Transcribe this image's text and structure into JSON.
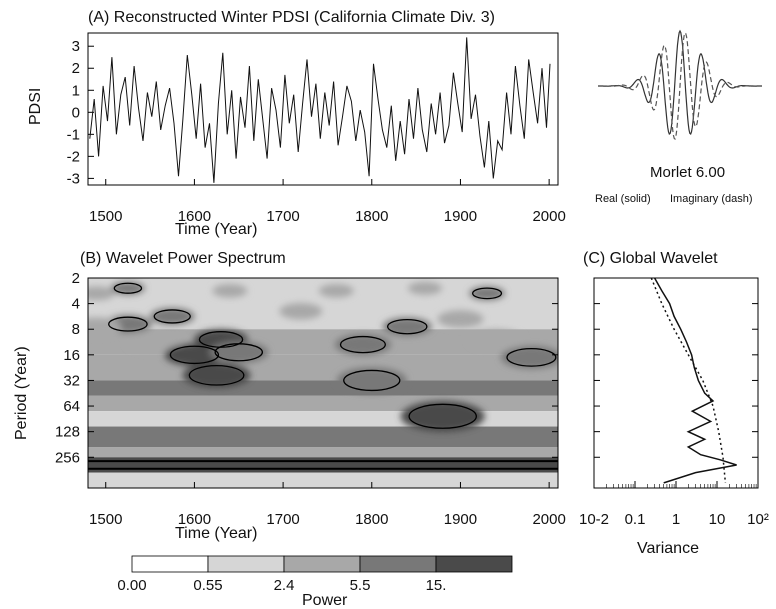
{
  "chart_data": [
    {
      "type": "line",
      "panel": "A",
      "title": "(A) Reconstructed Winter PDSI (California Climate Div. 3)",
      "xlabel": "Time (Year)",
      "ylabel": "PDSI",
      "xlim": [
        1480,
        2010
      ],
      "ylim": [
        -3.3,
        3.6
      ],
      "xticks": [
        "1500",
        "1600",
        "1700",
        "1800",
        "1900",
        "2000"
      ],
      "yticks": [
        "3",
        "2",
        "1",
        "0",
        "-1",
        "-2",
        "-3"
      ],
      "ytick_values": [
        3,
        2,
        1,
        0,
        -1,
        -2,
        -3
      ],
      "series": [
        {
          "x": [
            1482,
            1487,
            1492,
            1497,
            1502,
            1507,
            1512,
            1517,
            1522,
            1527,
            1532,
            1537,
            1542,
            1547,
            1552,
            1557,
            1562,
            1567,
            1572,
            1577,
            1582,
            1587,
            1592,
            1597,
            1602,
            1607,
            1612,
            1617,
            1622,
            1627,
            1632,
            1637,
            1642,
            1647,
            1652,
            1657,
            1662,
            1667,
            1672,
            1677,
            1682,
            1687,
            1692,
            1697,
            1702,
            1707,
            1712,
            1717,
            1722,
            1727,
            1732,
            1737,
            1742,
            1747,
            1752,
            1757,
            1762,
            1767,
            1772,
            1777,
            1782,
            1787,
            1792,
            1797,
            1802,
            1807,
            1812,
            1817,
            1822,
            1827,
            1832,
            1837,
            1842,
            1847,
            1852,
            1857,
            1862,
            1867,
            1872,
            1877,
            1882,
            1887,
            1892,
            1897,
            1902,
            1907,
            1912,
            1917,
            1922,
            1927,
            1932,
            1937,
            1942,
            1947,
            1952,
            1957,
            1962,
            1967,
            1972,
            1977,
            1982,
            1987,
            1992,
            1997,
            2001
          ],
          "y": [
            -1.2,
            0.6,
            -2.0,
            1.2,
            -0.4,
            2.5,
            -1.0,
            0.8,
            1.6,
            -0.6,
            2.1,
            0.2,
            -1.3,
            0.9,
            -0.2,
            1.4,
            -0.8,
            0.3,
            1.1,
            -0.5,
            -2.9,
            -0.3,
            2.6,
            0.8,
            -1.2,
            1.3,
            -1.6,
            -0.5,
            -3.2,
            0.4,
            2.7,
            -1.0,
            1.0,
            -2.1,
            0.7,
            -0.7,
            2.1,
            -1.3,
            1.5,
            -0.3,
            -2.1,
            1.1,
            0.1,
            -1.6,
            1.7,
            -0.5,
            0.8,
            -1.8,
            0.4,
            2.4,
            -0.2,
            1.3,
            -1.2,
            0.9,
            -0.6,
            1.4,
            -1.5,
            -0.2,
            1.2,
            0.5,
            -1.3,
            0.1,
            -0.9,
            -2.9,
            2.2,
            0.6,
            -0.8,
            -1.6,
            0.3,
            -2.2,
            -0.4,
            -1.9,
            0.6,
            -1.2,
            1.1,
            -0.8,
            -1.8,
            0.4,
            -1.0,
            0.9,
            -1.4,
            -0.6,
            1.8,
            0.4,
            -0.9,
            3.4,
            -0.3,
            0.8,
            -1.1,
            -2.5,
            -0.4,
            -3.0,
            -1.3,
            -1.7,
            0.9,
            -1.0,
            2.1,
            0.3,
            -1.2,
            2.4,
            0.9,
            -0.5,
            2.0,
            -0.7,
            2.2
          ]
        }
      ]
    },
    {
      "type": "line",
      "panel": "wavelet-inset",
      "title": "Morlet 6.00",
      "legend": [
        "Real (solid)",
        "Imaginary (dash)"
      ],
      "series": [
        {
          "name": "Real (solid)",
          "dash": false
        },
        {
          "name": "Imaginary (dash)",
          "dash": true
        }
      ],
      "omega0": 6.0
    },
    {
      "type": "heatmap",
      "panel": "B",
      "title": "(B) Wavelet Power Spectrum",
      "xlabel": "Time (Year)",
      "ylabel": "Period (Year)",
      "xlim": [
        1480,
        2010
      ],
      "xticks": [
        "1500",
        "1600",
        "1700",
        "1800",
        "1900",
        "2000"
      ],
      "yticks": [
        "2",
        "4",
        "8",
        "16",
        "32",
        "64",
        "128",
        "256"
      ],
      "ylim_log2": [
        1,
        9.2
      ],
      "colorbar": {
        "label": "Power",
        "levels": [
          "0.00",
          "0.55",
          "2.4",
          "5.5",
          "15."
        ],
        "colors": [
          "#ffffff",
          "#d6d6d6",
          "#a8a8a8",
          "#787878",
          "#4a4a4a"
        ]
      },
      "bands": [
        {
          "log2_period_range": [
            1.0,
            3.0
          ],
          "level": 1
        },
        {
          "log2_period_range": [
            3.0,
            4.0
          ],
          "level": 2
        },
        {
          "log2_period_range": [
            4.0,
            5.0
          ],
          "level": 2
        },
        {
          "log2_period_range": [
            5.0,
            5.6
          ],
          "level": 3
        },
        {
          "log2_period_range": [
            5.6,
            6.2
          ],
          "level": 2
        },
        {
          "log2_period_range": [
            6.2,
            6.8
          ],
          "level": 1
        },
        {
          "log2_period_range": [
            6.8,
            7.6
          ],
          "level": 3
        },
        {
          "log2_period_range": [
            7.6,
            8.0
          ],
          "level": 2
        },
        {
          "log2_period_range": [
            8.0,
            8.6
          ],
          "level": 4
        },
        {
          "log2_period_range": [
            8.6,
            9.2
          ],
          "level": 1
        }
      ],
      "blobs": [
        {
          "x": 1490,
          "p": 1.6,
          "level": 2
        },
        {
          "x": 1525,
          "p": 1.4,
          "level": 3
        },
        {
          "x": 1525,
          "p": 2.8,
          "level": 3
        },
        {
          "x": 1490,
          "p": 2.9,
          "level": 2
        },
        {
          "x": 1555,
          "p": 3.5,
          "level": 2
        },
        {
          "x": 1575,
          "p": 2.5,
          "level": 3
        },
        {
          "x": 1600,
          "p": 4.0,
          "level": 4
        },
        {
          "x": 1630,
          "p": 3.4,
          "level": 4
        },
        {
          "x": 1650,
          "p": 3.9,
          "level": 3
        },
        {
          "x": 1640,
          "p": 1.5,
          "level": 2
        },
        {
          "x": 1720,
          "p": 2.3,
          "level": 2
        },
        {
          "x": 1760,
          "p": 1.5,
          "level": 2
        },
        {
          "x": 1790,
          "p": 3.6,
          "level": 3
        },
        {
          "x": 1840,
          "p": 2.9,
          "level": 3
        },
        {
          "x": 1860,
          "p": 1.4,
          "level": 2
        },
        {
          "x": 1900,
          "p": 2.6,
          "level": 2
        },
        {
          "x": 1930,
          "p": 1.6,
          "level": 3
        },
        {
          "x": 1940,
          "p": 3.4,
          "level": 2
        },
        {
          "x": 1980,
          "p": 4.1,
          "level": 3
        },
        {
          "x": 1880,
          "p": 6.4,
          "level": 4
        },
        {
          "x": 1625,
          "p": 4.8,
          "level": 4
        },
        {
          "x": 1800,
          "p": 5.0,
          "level": 3
        }
      ]
    },
    {
      "type": "line",
      "panel": "C",
      "title": "(C) Global Wavelet",
      "xlabel": "Variance",
      "xscale": "log",
      "xlim": [
        0.01,
        100
      ],
      "xticks": [
        "10-2",
        "0.1",
        "1",
        "10",
        "10²"
      ],
      "series": [
        {
          "name": "global wavelet spectrum",
          "log2_period": [
            1.0,
            1.5,
            2.0,
            2.5,
            3.0,
            3.5,
            4.0,
            4.5,
            5.0,
            5.5,
            5.8,
            6.2,
            6.6,
            7.0,
            7.3,
            7.6,
            7.9,
            8.1,
            8.3,
            8.6,
            9.0
          ],
          "variance": [
            0.3,
            0.45,
            0.7,
            0.9,
            1.3,
            1.8,
            2.4,
            2.8,
            3.5,
            5.0,
            8.0,
            2.5,
            7.0,
            2.0,
            5.0,
            2.0,
            4.0,
            12.0,
            30.0,
            3.0,
            0.5
          ]
        },
        {
          "name": "significance (dotted)",
          "dash": true,
          "log2_period": [
            1.0,
            2.0,
            3.0,
            4.0,
            5.0,
            6.0,
            7.0,
            8.0,
            9.0
          ],
          "variance": [
            0.25,
            0.45,
            0.9,
            2.0,
            4.5,
            8.0,
            11.0,
            14.0,
            16.0
          ]
        }
      ]
    }
  ]
}
